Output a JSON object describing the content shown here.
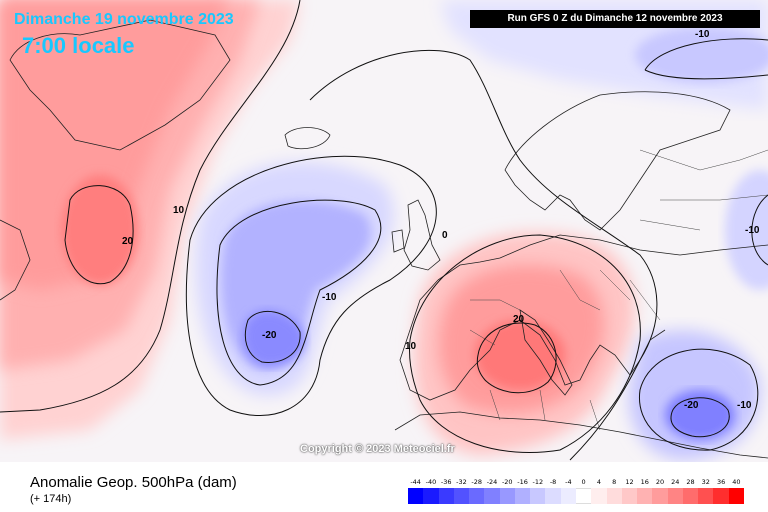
{
  "header": {
    "date_line": "Dimanche 19 novembre 2023",
    "time_line": "7:00 locale",
    "run_info": "Run GFS 0 Z du Dimanche 12 novembre 2023"
  },
  "map": {
    "copyright": "Copyright © 2023 Meteociel.fr",
    "contour_labels": [
      "-10",
      "20",
      "10",
      "0",
      "-10",
      "-20",
      "10",
      "20",
      "-10",
      "-20",
      "-10"
    ]
  },
  "footer": {
    "title": "Anomalie Geop. 500hPa (dam)",
    "subtitle": "(+ 174h)"
  },
  "color_scale": {
    "ticks": [
      "-44",
      "-40",
      "-36",
      "-32",
      "-28",
      "-24",
      "-20",
      "-16",
      "-12",
      "-8",
      "-4",
      "0",
      "4",
      "8",
      "12",
      "16",
      "20",
      "24",
      "28",
      "32",
      "36",
      "40"
    ],
    "colors": [
      "#0000ff",
      "#1a1aff",
      "#3a3aff",
      "#5252ff",
      "#6a6aff",
      "#8080ff",
      "#9898ff",
      "#b0b0ff",
      "#c8c8ff",
      "#dcdcff",
      "#ececff",
      "#ffffff",
      "#ffeeee",
      "#ffdcdc",
      "#ffc8c8",
      "#ffb2b2",
      "#ff9c9c",
      "#ff8484",
      "#ff6c6c",
      "#ff5050",
      "#ff2e2e",
      "#ff0000"
    ]
  }
}
